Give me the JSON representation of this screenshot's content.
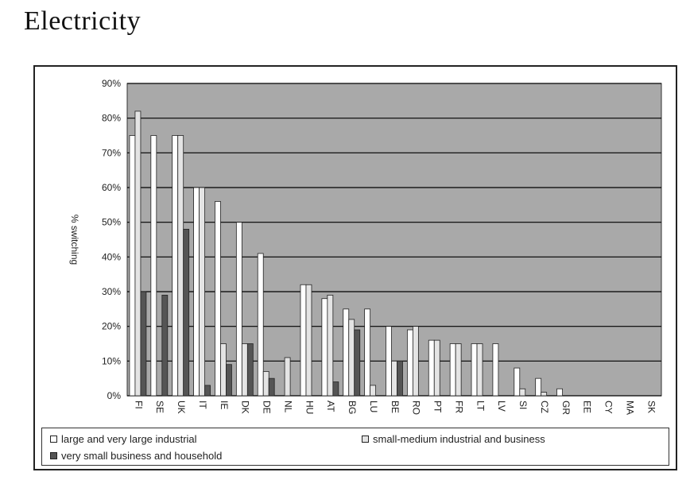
{
  "page": {
    "title": "Electricity"
  },
  "colors": {
    "plot_bg": "#a9a9a9",
    "large": "#ffffff",
    "small_medium": "#e4e4e4",
    "household": "#555555",
    "grid": "#000000"
  },
  "chart_data": {
    "type": "bar",
    "title": "",
    "xlabel": "",
    "ylabel": "% switching",
    "ylim": [
      0,
      90
    ],
    "yticks": [
      "0%",
      "10%",
      "20%",
      "30%",
      "40%",
      "50%",
      "60%",
      "70%",
      "80%",
      "90%"
    ],
    "grid": true,
    "legend_position": "bottom",
    "categories": [
      "FI",
      "SE",
      "UK",
      "IT",
      "IE",
      "DK",
      "DE",
      "NL",
      "HU",
      "AT",
      "BG",
      "LU",
      "BE",
      "RO",
      "PT",
      "FR",
      "LT",
      "LV",
      "SI",
      "CZ",
      "GR",
      "EE",
      "CY",
      "MA",
      "SK"
    ],
    "series": [
      {
        "name": "large and very large industrial",
        "values": [
          75,
          75,
          75,
          60,
          56,
          50,
          41,
          0,
          32,
          28,
          25,
          25,
          20,
          19,
          16,
          15,
          15,
          15,
          8,
          5,
          2,
          0,
          0,
          0,
          0
        ]
      },
      {
        "name": "small-medium industrial and business",
        "values": [
          82,
          0,
          75,
          60,
          15,
          15,
          7,
          11,
          32,
          29,
          22,
          3,
          10,
          20,
          16,
          15,
          15,
          0,
          2,
          1,
          0,
          0,
          0,
          0,
          0
        ]
      },
      {
        "name": "very small business and household",
        "values": [
          30,
          29,
          48,
          3,
          9,
          15,
          5,
          0,
          0,
          4,
          19,
          0,
          10,
          0,
          0,
          0,
          0,
          0,
          0,
          0,
          0,
          0,
          0,
          0,
          0
        ]
      }
    ]
  }
}
